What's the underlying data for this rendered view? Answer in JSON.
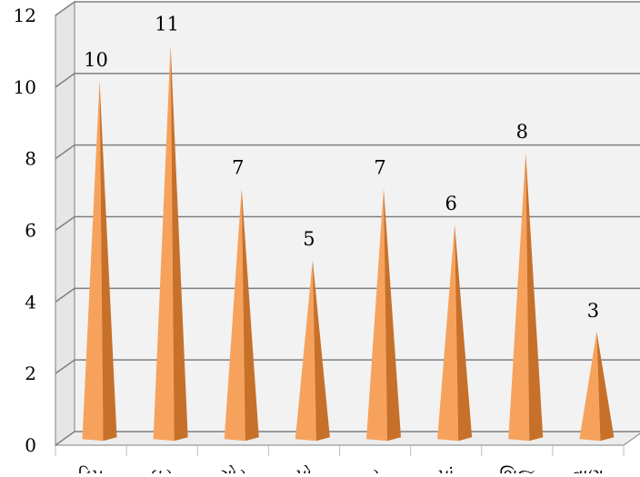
{
  "chart_data": {
    "type": "bar",
    "bar_shape": "cone-3d",
    "categories": [
      "ડિપ",
      "ઘર",
      "ગોર",
      "પો",
      "ર",
      "પાં",
      "ભિજ",
      "વાણ"
    ],
    "values": [
      10,
      11,
      7,
      5,
      7,
      6,
      8,
      3
    ],
    "data_labels": [
      "10",
      "11",
      "7",
      "5",
      "7",
      "6",
      "8",
      "3"
    ],
    "y_ticks": [
      "0",
      "2",
      "4",
      "6",
      "8",
      "10",
      "12"
    ],
    "ylim": [
      0,
      12
    ],
    "grid": true,
    "legend": "none",
    "colors": {
      "bar_light": "#F7A25C",
      "bar_dark": "#C7702A",
      "gridline": "#7F7F7F",
      "wall": "#F2F2F2",
      "text": "#000000"
    }
  }
}
